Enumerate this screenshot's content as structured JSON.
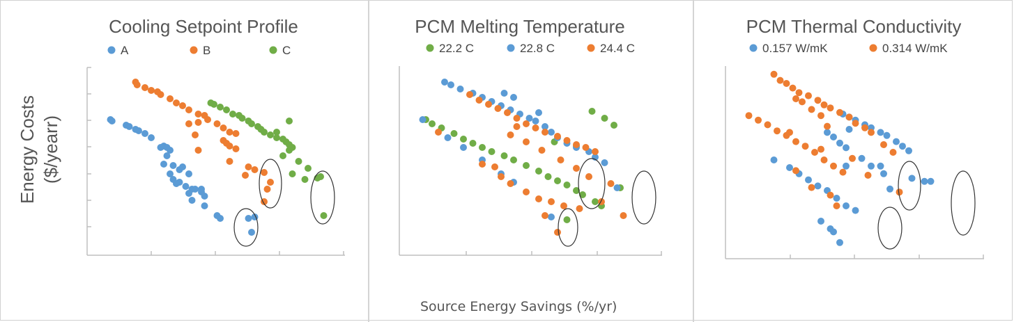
{
  "y_axis_label_line1": "Energy Costs",
  "y_axis_label_line2": "($/yearr)",
  "x_axis_label": "Source Energy Savings (%/yr)",
  "chart_data": [
    {
      "type": "scatter",
      "title": "Cooling Setpoint Profile",
      "series": [
        {
          "name": "A",
          "color": "#5B9BD5",
          "points": [
            [
              0.7,
              7.9
            ],
            [
              0.75,
              7.8
            ],
            [
              1.2,
              7.5
            ],
            [
              1.3,
              7.4
            ],
            [
              1.5,
              7.2
            ],
            [
              1.6,
              7.1
            ],
            [
              1.8,
              6.9
            ],
            [
              2.0,
              6.6
            ],
            [
              2.3,
              5.9
            ],
            [
              2.4,
              6.0
            ],
            [
              2.5,
              5.9
            ],
            [
              2.6,
              5.7
            ],
            [
              2.5,
              5.3
            ],
            [
              2.4,
              4.7
            ],
            [
              2.7,
              4.6
            ],
            [
              2.9,
              4.3
            ],
            [
              2.6,
              4.0
            ],
            [
              2.7,
              3.6
            ],
            [
              2.9,
              3.4
            ],
            [
              2.8,
              3.3
            ],
            [
              3.1,
              3.1
            ],
            [
              3.3,
              2.9
            ],
            [
              3.4,
              2.9
            ],
            [
              3.6,
              2.9
            ],
            [
              3.2,
              2.6
            ],
            [
              3.3,
              2.1
            ],
            [
              3.6,
              2.7
            ],
            [
              3.7,
              2.4
            ],
            [
              3.7,
              1.7
            ],
            [
              4.1,
              1.0
            ],
            [
              4.2,
              0.8
            ],
            [
              5.1,
              0.8
            ],
            [
              5.3,
              0.9
            ],
            [
              5.2,
              -0.2
            ],
            [
              3.0,
              4.5
            ],
            [
              3.2,
              4.0
            ]
          ]
        },
        {
          "name": "B",
          "color": "#ED7D31",
          "points": [
            [
              1.5,
              10.6
            ],
            [
              1.55,
              10.4
            ],
            [
              1.8,
              10.2
            ],
            [
              2.0,
              10.0
            ],
            [
              2.2,
              9.9
            ],
            [
              2.3,
              9.7
            ],
            [
              2.6,
              9.4
            ],
            [
              2.8,
              9.1
            ],
            [
              3.0,
              8.9
            ],
            [
              3.2,
              8.6
            ],
            [
              3.5,
              8.3
            ],
            [
              3.7,
              8.2
            ],
            [
              3.8,
              7.9
            ],
            [
              3.2,
              7.6
            ],
            [
              3.5,
              7.7
            ],
            [
              4.1,
              7.6
            ],
            [
              4.3,
              7.3
            ],
            [
              4.5,
              7.0
            ],
            [
              4.7,
              6.9
            ],
            [
              3.4,
              6.8
            ],
            [
              4.3,
              6.4
            ],
            [
              4.4,
              6.2
            ],
            [
              4.5,
              6.0
            ],
            [
              4.7,
              5.8
            ],
            [
              3.5,
              5.7
            ],
            [
              4.5,
              4.9
            ],
            [
              5.1,
              4.5
            ],
            [
              5.3,
              4.3
            ],
            [
              5.0,
              3.9
            ],
            [
              5.6,
              4.1
            ],
            [
              5.8,
              3.4
            ],
            [
              5.7,
              2.9
            ],
            [
              5.6,
              2.0
            ]
          ]
        },
        {
          "name": "C",
          "color": "#70AD47",
          "points": [
            [
              3.9,
              9.1
            ],
            [
              4.0,
              9.0
            ],
            [
              4.2,
              8.8
            ],
            [
              4.4,
              8.6
            ],
            [
              4.6,
              8.3
            ],
            [
              4.8,
              8.2
            ],
            [
              4.9,
              8.0
            ],
            [
              5.1,
              7.8
            ],
            [
              5.2,
              7.6
            ],
            [
              5.4,
              7.4
            ],
            [
              5.5,
              7.2
            ],
            [
              5.6,
              7.0
            ],
            [
              5.8,
              6.8
            ],
            [
              6.0,
              6.6
            ],
            [
              6.2,
              6.5
            ],
            [
              6.3,
              6.3
            ],
            [
              6.4,
              6.1
            ],
            [
              6.5,
              5.9
            ],
            [
              6.4,
              5.7
            ],
            [
              6.2,
              5.3
            ],
            [
              6.7,
              4.9
            ],
            [
              7.0,
              4.4
            ],
            [
              6.5,
              4.0
            ],
            [
              6.9,
              3.6
            ],
            [
              7.3,
              3.7
            ],
            [
              7.4,
              3.8
            ],
            [
              7.5,
              1.0
            ],
            [
              6.4,
              7.8
            ],
            [
              6.0,
              7.0
            ]
          ]
        }
      ],
      "legend_position": "top"
    },
    {
      "type": "scatter",
      "title": "PCM Melting Temperature",
      "series": [
        {
          "name": "22.2 C",
          "color": "#70AD47",
          "points": [
            [
              0.8,
              7.9
            ],
            [
              1.0,
              7.6
            ],
            [
              1.3,
              7.3
            ],
            [
              1.7,
              6.9
            ],
            [
              2.0,
              6.5
            ],
            [
              2.3,
              6.2
            ],
            [
              2.6,
              5.9
            ],
            [
              2.9,
              5.6
            ],
            [
              3.3,
              5.3
            ],
            [
              3.6,
              5.0
            ],
            [
              4.0,
              4.6
            ],
            [
              4.4,
              4.2
            ],
            [
              4.7,
              3.8
            ],
            [
              5.0,
              3.5
            ],
            [
              5.3,
              3.2
            ],
            [
              5.6,
              2.8
            ],
            [
              5.8,
              2.5
            ],
            [
              6.2,
              2.0
            ],
            [
              6.4,
              1.7
            ],
            [
              5.3,
              0.7
            ],
            [
              7.0,
              3.0
            ],
            [
              6.1,
              8.5
            ],
            [
              6.5,
              8.0
            ],
            [
              6.8,
              7.5
            ],
            [
              5.6,
              6.0
            ],
            [
              4.9,
              6.3
            ]
          ]
        },
        {
          "name": "22.8 C",
          "color": "#5B9BD5",
          "points": [
            [
              1.4,
              10.6
            ],
            [
              1.6,
              10.4
            ],
            [
              1.9,
              10.1
            ],
            [
              2.3,
              9.8
            ],
            [
              2.6,
              9.5
            ],
            [
              2.9,
              9.2
            ],
            [
              3.2,
              8.9
            ],
            [
              3.5,
              8.6
            ],
            [
              3.8,
              8.3
            ],
            [
              4.1,
              8.0
            ],
            [
              4.3,
              7.8
            ],
            [
              4.6,
              7.4
            ],
            [
              4.8,
              7.0
            ],
            [
              5.0,
              6.6
            ],
            [
              5.3,
              6.2
            ],
            [
              5.6,
              5.9
            ],
            [
              6.0,
              5.6
            ],
            [
              6.2,
              5.2
            ],
            [
              6.5,
              4.8
            ],
            [
              0.7,
              7.9
            ],
            [
              1.5,
              6.6
            ],
            [
              2.0,
              5.9
            ],
            [
              2.6,
              5.0
            ],
            [
              3.2,
              4.0
            ],
            [
              3.6,
              3.4
            ],
            [
              4.8,
              0.9
            ],
            [
              6.9,
              3.0
            ],
            [
              3.3,
              9.8
            ],
            [
              3.6,
              9.5
            ],
            [
              4.4,
              8.4
            ]
          ]
        },
        {
          "name": "24.4 C",
          "color": "#ED7D31",
          "points": [
            [
              2.2,
              9.7
            ],
            [
              2.5,
              9.3
            ],
            [
              2.8,
              9.0
            ],
            [
              3.1,
              8.7
            ],
            [
              3.4,
              8.4
            ],
            [
              3.7,
              8.0
            ],
            [
              4.0,
              7.6
            ],
            [
              4.3,
              7.3
            ],
            [
              4.6,
              7.0
            ],
            [
              5.0,
              6.7
            ],
            [
              5.3,
              6.4
            ],
            [
              5.6,
              6.1
            ],
            [
              5.9,
              5.9
            ],
            [
              6.2,
              5.6
            ],
            [
              3.7,
              7.4
            ],
            [
              3.5,
              6.8
            ],
            [
              4.0,
              6.3
            ],
            [
              4.5,
              5.7
            ],
            [
              5.1,
              5.0
            ],
            [
              5.6,
              4.4
            ],
            [
              6.0,
              3.8
            ],
            [
              2.6,
              4.7
            ],
            [
              3.0,
              4.5
            ],
            [
              3.2,
              3.8
            ],
            [
              3.5,
              3.3
            ],
            [
              4.0,
              2.7
            ],
            [
              4.4,
              2.2
            ],
            [
              4.8,
              2.0
            ],
            [
              5.2,
              1.7
            ],
            [
              5.7,
              1.5
            ],
            [
              6.4,
              2.0
            ],
            [
              6.7,
              3.3
            ],
            [
              4.6,
              1.0
            ],
            [
              5.0,
              -0.2
            ],
            [
              7.1,
              1.0
            ],
            [
              1.2,
              7.0
            ]
          ]
        }
      ],
      "legend_position": "top"
    },
    {
      "type": "scatter",
      "title": "PCM Thermal Conductivity",
      "series": [
        {
          "name": "0.157 W/mK",
          "color": "#5B9BD5",
          "points": [
            [
              3.7,
              8.0
            ],
            [
              3.9,
              7.8
            ],
            [
              4.1,
              7.6
            ],
            [
              4.4,
              7.3
            ],
            [
              4.6,
              7.1
            ],
            [
              4.9,
              6.8
            ],
            [
              5.1,
              6.6
            ],
            [
              5.4,
              6.2
            ],
            [
              5.6,
              5.9
            ],
            [
              5.8,
              5.6
            ],
            [
              3.2,
              6.8
            ],
            [
              3.4,
              6.5
            ],
            [
              3.6,
              6.1
            ],
            [
              3.8,
              5.8
            ],
            [
              4.3,
              5.1
            ],
            [
              4.6,
              4.6
            ],
            [
              5.0,
              4.1
            ],
            [
              1.5,
              5.0
            ],
            [
              2.0,
              4.5
            ],
            [
              2.3,
              4.1
            ],
            [
              2.6,
              3.7
            ],
            [
              2.9,
              3.3
            ],
            [
              3.2,
              3.0
            ],
            [
              3.5,
              2.5
            ],
            [
              3.8,
              2.0
            ],
            [
              4.1,
              1.7
            ],
            [
              3.3,
              0.5
            ],
            [
              3.4,
              0.3
            ],
            [
              3.6,
              -0.4
            ],
            [
              3.0,
              1.0
            ],
            [
              3.8,
              4.6
            ],
            [
              4.9,
              4.6
            ],
            [
              5.2,
              3.1
            ],
            [
              5.9,
              3.8
            ],
            [
              6.3,
              3.6
            ],
            [
              6.5,
              3.6
            ],
            [
              3.9,
              7.0
            ]
          ]
        },
        {
          "name": "0.314 W/mK",
          "color": "#ED7D31",
          "points": [
            [
              1.5,
              10.6
            ],
            [
              1.7,
              10.2
            ],
            [
              1.9,
              10.0
            ],
            [
              2.1,
              9.7
            ],
            [
              2.3,
              9.4
            ],
            [
              2.6,
              9.2
            ],
            [
              2.9,
              8.9
            ],
            [
              3.1,
              8.6
            ],
            [
              3.3,
              8.4
            ],
            [
              3.6,
              8.1
            ],
            [
              3.9,
              7.8
            ],
            [
              4.1,
              7.4
            ],
            [
              4.4,
              7.1
            ],
            [
              4.6,
              6.8
            ],
            [
              0.7,
              7.9
            ],
            [
              1.0,
              7.6
            ],
            [
              1.3,
              7.3
            ],
            [
              1.6,
              6.9
            ],
            [
              1.9,
              6.6
            ],
            [
              2.2,
              6.2
            ],
            [
              2.5,
              5.9
            ],
            [
              2.8,
              5.5
            ],
            [
              3.1,
              5.0
            ],
            [
              3.4,
              4.6
            ],
            [
              3.7,
              4.2
            ],
            [
              2.2,
              9.0
            ],
            [
              2.4,
              8.8
            ],
            [
              2.7,
              8.3
            ],
            [
              3.0,
              7.9
            ],
            [
              3.2,
              7.2
            ],
            [
              3.0,
              5.7
            ],
            [
              4.0,
              5.1
            ],
            [
              4.5,
              4.0
            ],
            [
              5.0,
              6.0
            ],
            [
              5.3,
              5.5
            ],
            [
              5.5,
              2.9
            ],
            [
              2.2,
              4.3
            ],
            [
              2.7,
              3.2
            ],
            [
              3.3,
              2.7
            ],
            [
              3.5,
              2.0
            ],
            [
              2.0,
              6.8
            ]
          ]
        }
      ],
      "legend_position": "top"
    }
  ]
}
